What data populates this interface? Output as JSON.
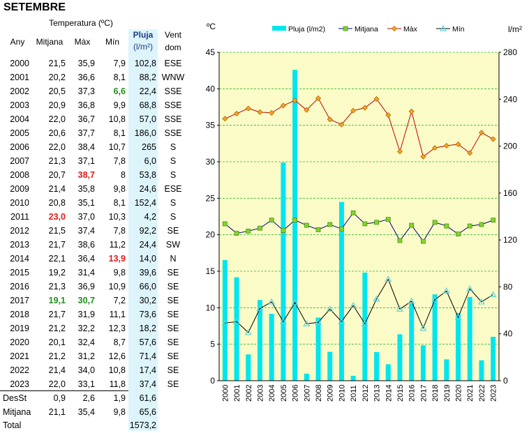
{
  "title": "SETEMBRE",
  "table": {
    "header_temp": "Temperatura (ºC)",
    "col_year": "Any",
    "col_avg": "Mitjana",
    "col_max": "Màx",
    "col_min": "Mín",
    "col_rain": "Pluja",
    "col_rain_unit": "(l/m²)",
    "col_wind": "Vent",
    "col_wind2": "dom",
    "rows": [
      {
        "year": "2000",
        "avg": "21,5",
        "max": "35,9",
        "min": "7,9",
        "rain": "102,8",
        "wind": "ESE"
      },
      {
        "year": "2001",
        "avg": "20,2",
        "max": "36,6",
        "min": "8,1",
        "rain": "88,2",
        "wind": "WNW"
      },
      {
        "year": "2002",
        "avg": "20,5",
        "max": "37,3",
        "min": "6,6",
        "rain": "22,4",
        "wind": "SSE",
        "min_flag": "lo"
      },
      {
        "year": "2003",
        "avg": "20,9",
        "max": "36,8",
        "min": "9,9",
        "rain": "68,8",
        "wind": "SSE"
      },
      {
        "year": "2004",
        "avg": "22,0",
        "max": "36,7",
        "min": "10,8",
        "rain": "57,0",
        "wind": "SSE"
      },
      {
        "year": "2005",
        "avg": "20,6",
        "max": "37,7",
        "min": "8,1",
        "rain": "186,0",
        "wind": "SSE"
      },
      {
        "year": "2006",
        "avg": "22,0",
        "max": "38,4",
        "min": "10,7",
        "rain": "265",
        "wind": "S"
      },
      {
        "year": "2007",
        "avg": "21,3",
        "max": "37,1",
        "min": "7,8",
        "rain": "6,0",
        "wind": "S"
      },
      {
        "year": "2008",
        "avg": "20,7",
        "max": "38,7",
        "min": "8",
        "rain": "53,8",
        "wind": "S",
        "max_flag": "hi"
      },
      {
        "year": "2009",
        "avg": "21,4",
        "max": "35,8",
        "min": "9,8",
        "rain": "24,6",
        "wind": "ESE"
      },
      {
        "year": "2010",
        "avg": "20,8",
        "max": "35,1",
        "min": "8,1",
        "rain": "152,4",
        "wind": "S"
      },
      {
        "year": "2011",
        "avg": "23,0",
        "max": "37,0",
        "min": "10,3",
        "rain": "4,2",
        "wind": "S",
        "avg_flag": "hi"
      },
      {
        "year": "2012",
        "avg": "21,5",
        "max": "37,4",
        "min": "7,8",
        "rain": "92,2",
        "wind": "SE"
      },
      {
        "year": "2013",
        "avg": "21,7",
        "max": "38,6",
        "min": "11,2",
        "rain": "24,4",
        "wind": "SW"
      },
      {
        "year": "2014",
        "avg": "22,1",
        "max": "36,4",
        "min": "13,9",
        "rain": "14,0",
        "wind": "N",
        "min_flag": "hi"
      },
      {
        "year": "2015",
        "avg": "19,2",
        "max": "31,4",
        "min": "9,8",
        "rain": "39,6",
        "wind": "SE"
      },
      {
        "year": "2016",
        "avg": "21,3",
        "max": "36,9",
        "min": "10,9",
        "rain": "66,0",
        "wind": "SE"
      },
      {
        "year": "2017",
        "avg": "19,1",
        "max": "30,7",
        "min": "7,2",
        "rain": "30,2",
        "wind": "SE",
        "avg_flag": "lo",
        "max_flag": "lo"
      },
      {
        "year": "2018",
        "avg": "21,7",
        "max": "31,9",
        "min": "11,1",
        "rain": "73,6",
        "wind": "SE"
      },
      {
        "year": "2019",
        "avg": "21,2",
        "max": "32,2",
        "min": "12,3",
        "rain": "18,2",
        "wind": "SE"
      },
      {
        "year": "2020",
        "avg": "20,1",
        "max": "32,4",
        "min": "8,7",
        "rain": "57,6",
        "wind": "SE"
      },
      {
        "year": "2021",
        "avg": "21,2",
        "max": "31,2",
        "min": "12,6",
        "rain": "71,4",
        "wind": "SE"
      },
      {
        "year": "2022",
        "avg": "21,4",
        "max": "34,0",
        "min": "10,8",
        "rain": "17,4",
        "wind": "SE"
      },
      {
        "year": "2023",
        "avg": "22,0",
        "max": "33,1",
        "min": "11,8",
        "rain": "37,4",
        "wind": "SE"
      }
    ],
    "summary": [
      {
        "label": "DesSt",
        "avg": "0,9",
        "max": "2,6",
        "min": "1,9",
        "rain": "61,6"
      },
      {
        "label": "Mitjana",
        "avg": "21,1",
        "max": "35,4",
        "min": "9,8",
        "rain": "65,6"
      },
      {
        "label": "Total",
        "avg": "",
        "max": "",
        "min": "",
        "rain": "1573,2"
      }
    ]
  },
  "colors": {
    "rain": "#00e5ee",
    "avg": "#000080",
    "max": "#c00000",
    "min": "#000000",
    "plot_bg": "#fbfbc8",
    "grid": "#2db82d",
    "avg_marker": "#7fd62a",
    "max_marker": "#f5a623",
    "min_marker": "#5bd6d6",
    "hi": "#e01b1b",
    "lo": "#1e8f1e"
  },
  "chart_data": {
    "type": "bar+line",
    "left_axis_label": "ºC",
    "right_axis_label": "l/m²",
    "ylim_left": [
      0,
      45
    ],
    "yticks_left": [
      0,
      5,
      10,
      15,
      20,
      25,
      30,
      35,
      40,
      45
    ],
    "ylim_right": [
      0,
      280
    ],
    "yticks_right": [
      0,
      40,
      80,
      120,
      160,
      200,
      240,
      280
    ],
    "grid": true,
    "legend_position": "top",
    "categories": [
      "2000",
      "2001",
      "2002",
      "2003",
      "2004",
      "2005",
      "2006",
      "2007",
      "2008",
      "2009",
      "2010",
      "2011",
      "2012",
      "2013",
      "2014",
      "2015",
      "2016",
      "2017",
      "2018",
      "2019",
      "2020",
      "2021",
      "2022",
      "2023"
    ],
    "series": [
      {
        "name": "Pluja (l/m2)",
        "kind": "bar",
        "axis": "right",
        "values": [
          102.8,
          88.2,
          22.4,
          68.8,
          57.0,
          186.0,
          265,
          6.0,
          53.8,
          24.6,
          152.4,
          4.2,
          92.2,
          24.4,
          14.0,
          39.6,
          66.0,
          30.2,
          73.6,
          18.2,
          57.6,
          71.4,
          17.4,
          37.4
        ]
      },
      {
        "name": "Mitjana",
        "kind": "line",
        "axis": "left",
        "values": [
          21.5,
          20.2,
          20.5,
          20.9,
          22.0,
          20.6,
          22.0,
          21.3,
          20.7,
          21.4,
          20.8,
          23.0,
          21.5,
          21.7,
          22.1,
          19.2,
          21.3,
          19.1,
          21.7,
          21.2,
          20.1,
          21.2,
          21.4,
          22.0
        ]
      },
      {
        "name": "Màx",
        "kind": "line",
        "axis": "left",
        "values": [
          35.9,
          36.6,
          37.3,
          36.8,
          36.7,
          37.7,
          38.4,
          37.1,
          38.7,
          35.8,
          35.1,
          37.0,
          37.4,
          38.6,
          36.4,
          31.4,
          36.9,
          30.7,
          31.9,
          32.2,
          32.4,
          31.2,
          34.0,
          33.1
        ]
      },
      {
        "name": "Mín",
        "kind": "line",
        "axis": "left",
        "values": [
          7.9,
          8.1,
          6.6,
          9.9,
          10.8,
          8.1,
          10.7,
          7.8,
          8,
          9.8,
          8.1,
          10.3,
          7.8,
          11.2,
          13.9,
          9.8,
          10.9,
          7.2,
          11.1,
          12.3,
          8.7,
          12.6,
          10.8,
          11.8
        ]
      }
    ]
  }
}
